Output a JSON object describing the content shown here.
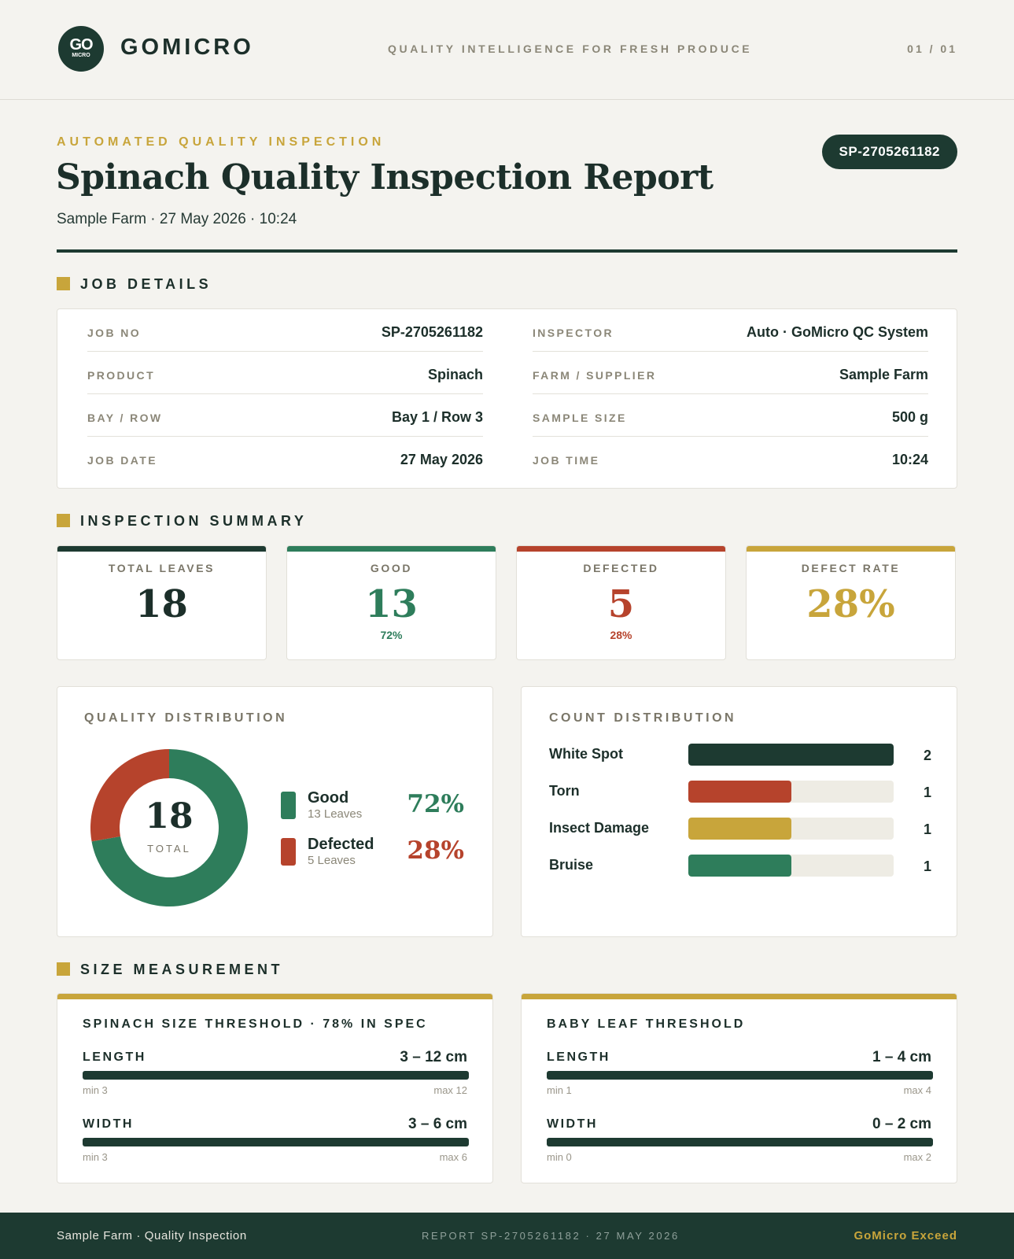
{
  "header": {
    "logo_top": "GO",
    "logo_bottom": "MICRO",
    "brand": "GOMICRO",
    "tagline": "QUALITY INTELLIGENCE FOR FRESH PRODUCE",
    "page": "01 / 01"
  },
  "report": {
    "eyebrow": "AUTOMATED QUALITY INSPECTION",
    "title": "Spinach Quality Inspection Report",
    "subtitle": "Sample Farm · 27 May 2026 · 10:24",
    "id_badge": "SP-2705261182"
  },
  "job_details": {
    "heading": "JOB DETAILS",
    "left": [
      {
        "label": "JOB NO",
        "value": "SP-2705261182"
      },
      {
        "label": "PRODUCT",
        "value": "Spinach"
      },
      {
        "label": "BAY / ROW",
        "value": "Bay 1 / Row 3"
      },
      {
        "label": "JOB DATE",
        "value": "27 May 2026"
      }
    ],
    "right": [
      {
        "label": "INSPECTOR",
        "value": "Auto · GoMicro QC System"
      },
      {
        "label": "FARM / SUPPLIER",
        "value": "Sample Farm"
      },
      {
        "label": "SAMPLE SIZE",
        "value": "500 g"
      },
      {
        "label": "JOB TIME",
        "value": "10:24"
      }
    ]
  },
  "summary": {
    "heading": "INSPECTION SUMMARY",
    "tiles": [
      {
        "label": "TOTAL LEAVES",
        "value": "18",
        "pct": "",
        "color": "#1d3a31"
      },
      {
        "label": "GOOD",
        "value": "13",
        "pct": "72%",
        "color": "#2e7d5b"
      },
      {
        "label": "DEFECTED",
        "value": "5",
        "pct": "28%",
        "color": "#b6432c"
      },
      {
        "label": "DEFECT RATE",
        "value": "28%",
        "pct": "",
        "color": "#c8a53b"
      }
    ]
  },
  "quality_distribution": {
    "title": "QUALITY DISTRIBUTION",
    "center_value": "18",
    "center_label": "TOTAL",
    "legend": [
      {
        "name": "Good",
        "sub": "13 Leaves",
        "pct": "72%",
        "color": "#2e7d5b"
      },
      {
        "name": "Defected",
        "sub": "5 Leaves",
        "pct": "28%",
        "color": "#b6432c"
      }
    ]
  },
  "count_distribution": {
    "title": "COUNT DISTRIBUTION",
    "items": [
      {
        "name": "White Spot",
        "count": "2",
        "fraction": 1.0,
        "color": "#1d3a31"
      },
      {
        "name": "Torn",
        "count": "1",
        "fraction": 0.5,
        "color": "#b6432c"
      },
      {
        "name": "Insect Damage",
        "count": "1",
        "fraction": 0.5,
        "color": "#c8a53b"
      },
      {
        "name": "Bruise",
        "count": "1",
        "fraction": 0.5,
        "color": "#2e7d5b"
      }
    ]
  },
  "size_measurement": {
    "heading": "SIZE MEASUREMENT",
    "cards": [
      {
        "title": "SPINACH SIZE THRESHOLD · 78% IN SPEC",
        "rows": [
          {
            "label": "LENGTH",
            "value": "3 – 12 cm",
            "min": "min 3",
            "max": "max 12"
          },
          {
            "label": "WIDTH",
            "value": "3 – 6 cm",
            "min": "min 3",
            "max": "max 6"
          }
        ]
      },
      {
        "title": "BABY LEAF THRESHOLD",
        "rows": [
          {
            "label": "LENGTH",
            "value": "1 – 4 cm",
            "min": "min 1",
            "max": "max 4"
          },
          {
            "label": "WIDTH",
            "value": "0 – 2 cm",
            "min": "min 0",
            "max": "max 2"
          }
        ]
      }
    ]
  },
  "chart_data": {
    "type": "pie",
    "categories": [
      "Good",
      "Defected"
    ],
    "values": [
      13,
      5
    ],
    "colors": [
      "#2e7d5b",
      "#b6432c"
    ]
  },
  "footer": {
    "left": "Sample Farm · Quality Inspection",
    "middle": "REPORT SP-2705261182 · 27 MAY 2026",
    "right": "GoMicro Exceed"
  }
}
